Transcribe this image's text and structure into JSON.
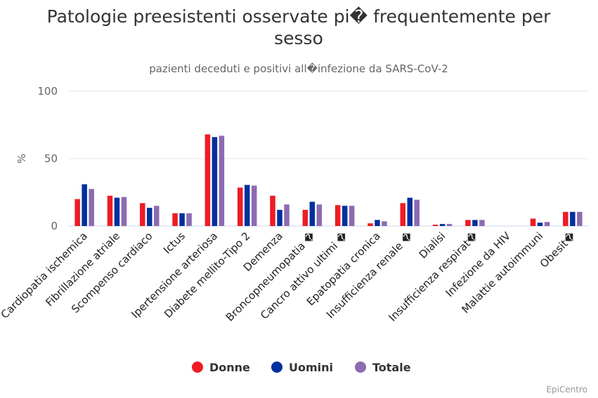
{
  "chart_data": {
    "type": "bar",
    "title_line1": "Patologie preesistenti osservate pi� frequentemente per",
    "title_line2": "sesso",
    "subtitle": "pazienti deceduti e positivi all�infezione da SARS-CoV-2",
    "ylabel": "%",
    "ylim": [
      0,
      100
    ],
    "yticks": [
      0,
      50,
      100
    ],
    "grid": true,
    "legend_position": "bottom-center",
    "categories": [
      "Cardiopatia ischemica",
      "Fibrillazione atriale",
      "Scompenso cardiaco",
      "Ictus",
      "Ipertensione arteriosa",
      "Diabete mellito-Tipo 2",
      "Demenza",
      "Broncopneumopatia �",
      "Cancro attivo ultimi �",
      "Epatopatia cronica",
      "Insufficienza renale �",
      "Dialisi",
      "Insufficienza respirat�",
      "Infezione da HIV",
      "Malattie autoimmuni",
      "Obesit�"
    ],
    "series": [
      {
        "name": "Donne",
        "color": "#ee1c25",
        "values": [
          20,
          22.5,
          17,
          9.5,
          68,
          28.5,
          22.5,
          12,
          15.5,
          2,
          17,
          1,
          4.5,
          0,
          5.5,
          10.5
        ]
      },
      {
        "name": "Uomini",
        "color": "#00309e",
        "values": [
          31,
          21,
          13.5,
          9.5,
          66,
          30.5,
          12,
          18,
          15,
          4.5,
          21,
          1.5,
          4.5,
          0,
          2.5,
          10.5
        ]
      },
      {
        "name": "Totale",
        "color": "#8b6bb1",
        "values": [
          27.5,
          21.5,
          15,
          9.5,
          67,
          30,
          16,
          16,
          15,
          3.5,
          19.5,
          1.5,
          4.5,
          0,
          3,
          10.5
        ]
      }
    ]
  },
  "credit": "EpiCentro"
}
